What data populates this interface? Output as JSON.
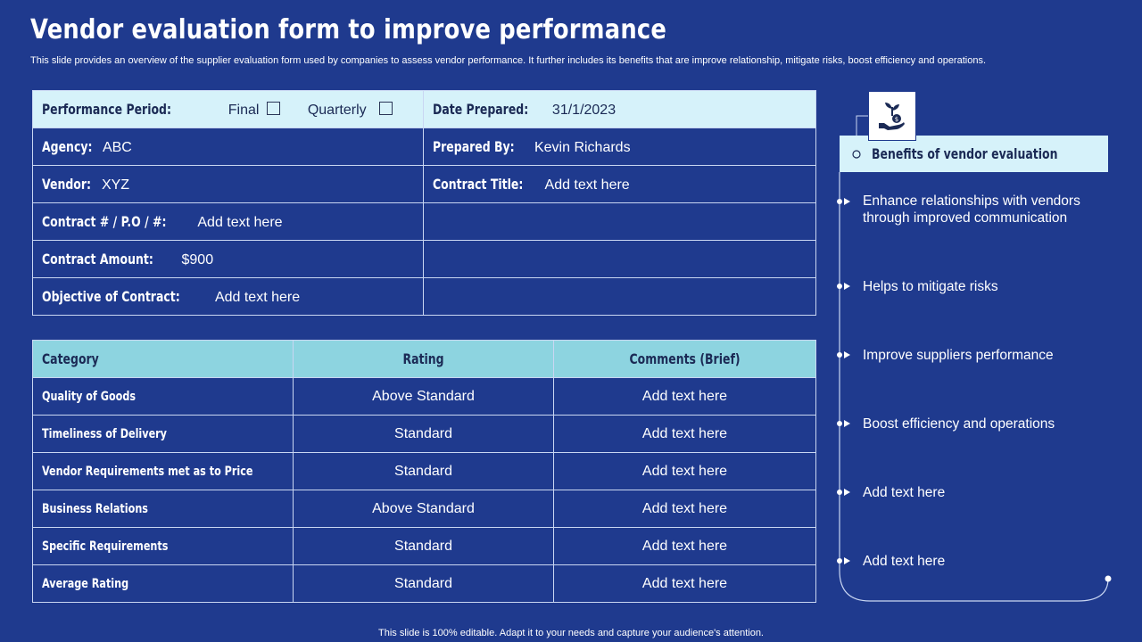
{
  "header": {
    "title": "Vendor evaluation form to improve performance",
    "subtitle": "This slide provides an overview of the supplier evaluation form used by companies to assess vendor performance. It further includes its benefits that are improve relationship, mitigate risks, boost efficiency and operations."
  },
  "info_table": {
    "performance_period_label": "Performance Period:",
    "final_label": "Final",
    "quarterly_label": "Quarterly",
    "date_prepared_label": "Date Prepared:",
    "date_prepared_value": "31/1/2023",
    "agency_label": "Agency:",
    "agency_value": "ABC",
    "prepared_by_label": "Prepared By:",
    "prepared_by_value": "Kevin Richards",
    "vendor_label": "Vendor:",
    "vendor_value": "XYZ",
    "contract_title_label": "Contract Title:",
    "contract_title_value": "Add text here",
    "contract_no_label": "Contract # / P.O / #:",
    "contract_no_value": "Add text here",
    "contract_amount_label": "Contract Amount:",
    "contract_amount_value": "$900",
    "objective_label": "Objective of Contract:",
    "objective_value": "Add text here"
  },
  "evaluation": {
    "headers": [
      "Category",
      "Rating",
      "Comments (Brief)"
    ],
    "rows": [
      {
        "category": "Quality of Goods",
        "rating": "Above Standard",
        "comment": "Add text here"
      },
      {
        "category": "Timeliness of Delivery",
        "rating": "Standard",
        "comment": "Add text here"
      },
      {
        "category": "Vendor Requirements met as to Price",
        "rating": "Standard",
        "comment": "Add text here"
      },
      {
        "category": "Business Relations",
        "rating": "Above Standard",
        "comment": "Add text here"
      },
      {
        "category": "Specific Requirements",
        "rating": "Standard",
        "comment": "Add text here"
      },
      {
        "category": "Average Rating",
        "rating": "Standard",
        "comment": "Add text here"
      }
    ]
  },
  "benefits": {
    "icon": "hand-plant-coin-icon",
    "title": "Benefits of vendor evaluation",
    "items": [
      "Enhance relationships with vendors through improved communication",
      "Helps to mitigate risks",
      "Improve suppliers performance",
      "Boost efficiency and operations",
      "Add text here",
      "Add text here"
    ]
  },
  "footer": "This slide is 100% editable. Adapt it to your needs and capture your audience's attention.",
  "colors": {
    "background": "#1f3a8e",
    "light_cell": "#d6f2fa",
    "header_cell": "#8dd4e0",
    "dark_text": "#1b2a55"
  }
}
